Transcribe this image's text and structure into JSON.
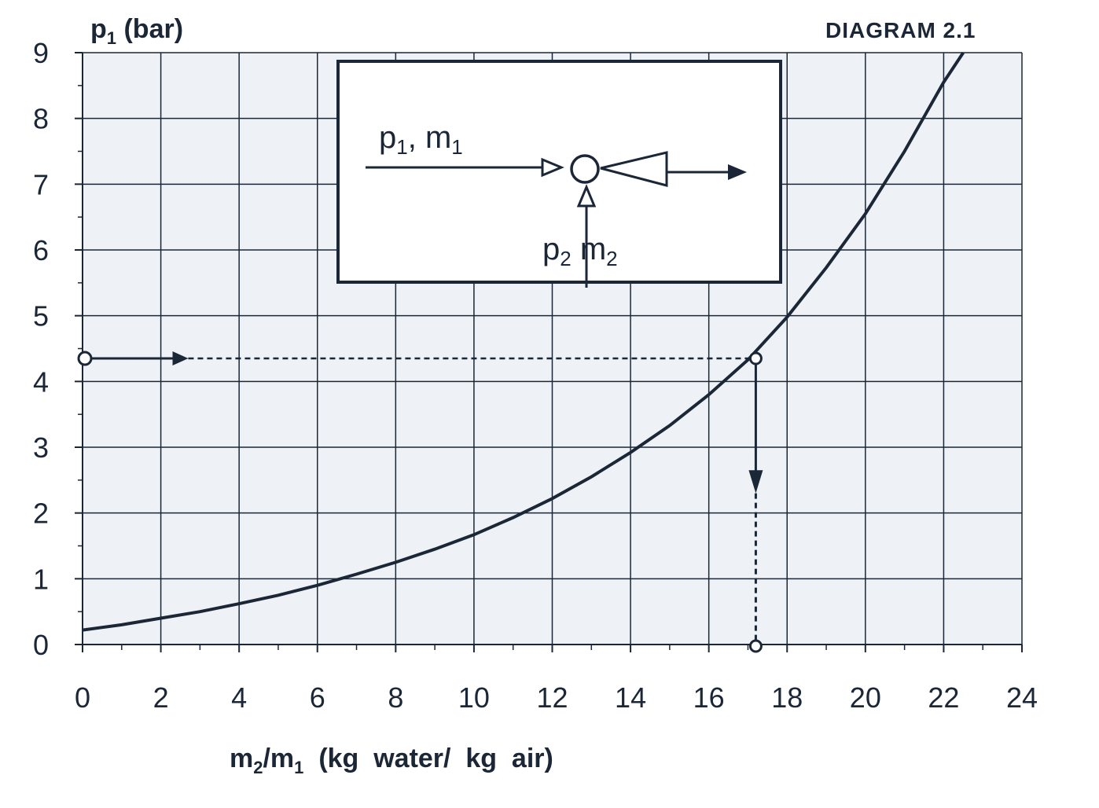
{
  "chart_data": {
    "type": "line",
    "title": "DIAGRAM 2.1",
    "ylabel_main": "p",
    "ylabel_sub": "1",
    "ylabel_rest": " (bar)",
    "xlabel_a": "m",
    "xlabel_a_sub": "2",
    "xlabel_b": "/m",
    "xlabel_b_sub": "1",
    "xlabel_rest": "  (kg  water/  kg  air)",
    "xlim": [
      0,
      24
    ],
    "ylim": [
      0,
      9
    ],
    "xticks": [
      "0",
      "2",
      "4",
      "6",
      "8",
      "10",
      "12",
      "14",
      "16",
      "18",
      "20",
      "22",
      "24"
    ],
    "yticks": [
      "0",
      "1",
      "2",
      "3",
      "4",
      "5",
      "6",
      "7",
      "8",
      "9"
    ],
    "grid": true,
    "series": [
      {
        "x": [
          0,
          1,
          2,
          3,
          4,
          5,
          6,
          7,
          8,
          9,
          10,
          11,
          12,
          13,
          14,
          15,
          16,
          17,
          18,
          19,
          20,
          21,
          22,
          22.5
        ],
        "y": [
          0.22,
          0.3,
          0.4,
          0.5,
          0.62,
          0.75,
          0.9,
          1.07,
          1.25,
          1.45,
          1.67,
          1.93,
          2.22,
          2.55,
          2.92,
          3.33,
          3.8,
          4.33,
          4.98,
          5.73,
          6.55,
          7.5,
          8.55,
          9.0
        ]
      }
    ],
    "annotation": {
      "p1_value": 4.35,
      "ratio_value": 17.2
    },
    "inset": {
      "top_label": "p",
      "top_label_sub": "1",
      "top_label_rest": ", m",
      "top_label_sub2": "1",
      "bottom_label": "p",
      "bottom_label_sub": "2",
      "bottom_label_rest": " m",
      "bottom_label_sub2": "2"
    }
  }
}
